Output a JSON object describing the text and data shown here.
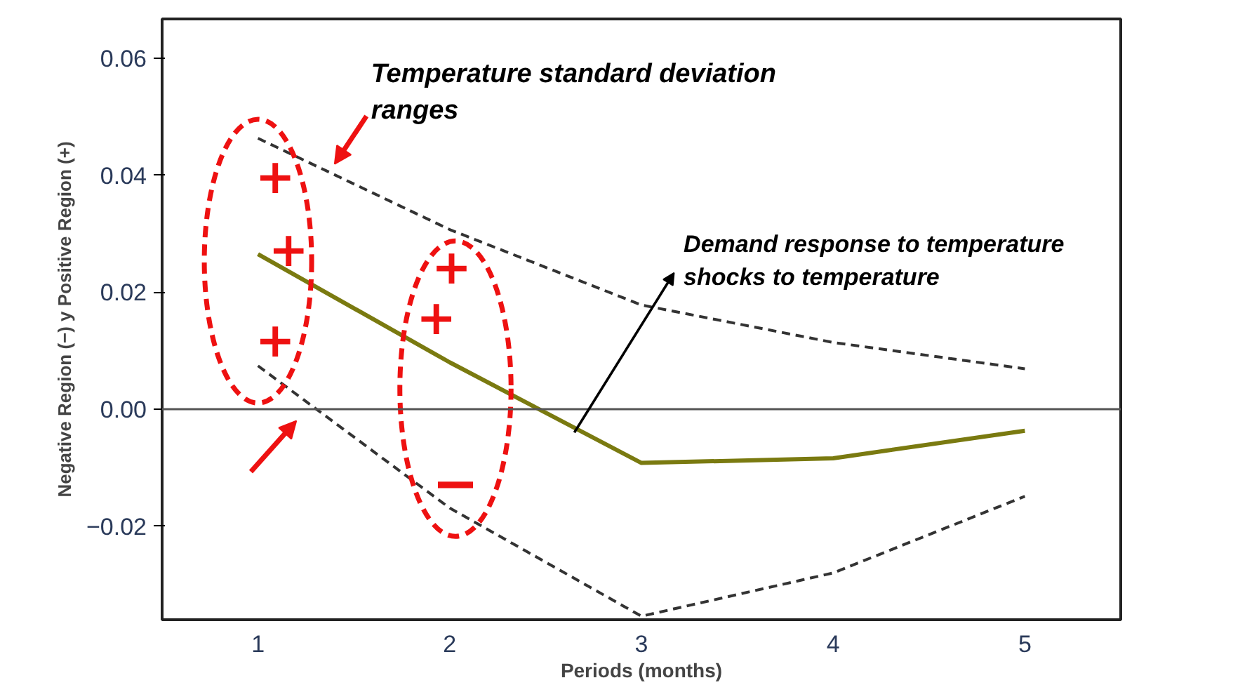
{
  "chart_data": {
    "type": "line",
    "xlabel": "Periods (months)",
    "ylabel": "Negative Region (−) y Positive Region (+)",
    "categories": [
      "1",
      "2",
      "3",
      "4",
      "5"
    ],
    "series": [
      {
        "color": "#7a7a10",
        "values": [
          0.0265,
          0.008,
          -0.0092,
          -0.0084,
          -0.0037
        ],
        "line_style": "solid"
      },
      {
        "color": "#333333",
        "values": [
          0.0463,
          0.0307,
          0.0178,
          0.0114,
          0.0069
        ],
        "line_style": "dashed"
      },
      {
        "color": "#333333",
        "values": [
          0.0074,
          -0.0169,
          -0.0354,
          -0.028,
          -0.0149
        ],
        "line_style": "dashed"
      }
    ],
    "ylim": [
      -0.036,
      0.0667
    ],
    "yticks": [
      {
        "value": -0.02,
        "label": "−0.02"
      },
      {
        "value": 0,
        "label": "0.00"
      },
      {
        "value": 0.02,
        "label": "0.02"
      },
      {
        "value": 0.04,
        "label": "0.04"
      },
      {
        "value": 0.06,
        "label": "0.06"
      }
    ],
    "ref_lines": [
      {
        "axis": "y",
        "value": 0,
        "color": "#555555"
      }
    ],
    "annotations": [
      "Temperature standard deviation\nranges",
      "Demand response to temperature\nshocks to temperature",
      "+",
      "+",
      "+",
      "+",
      "+",
      "−"
    ]
  }
}
